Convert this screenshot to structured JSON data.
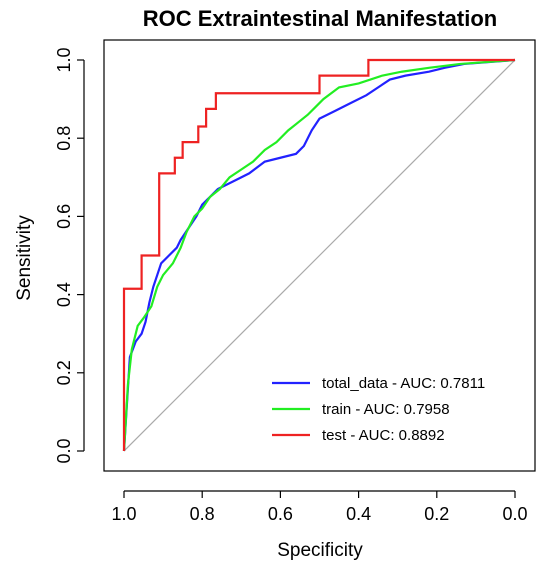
{
  "chart_data": {
    "type": "line",
    "title": "ROC Extraintestinal Manifestation",
    "xlabel": "Specificity",
    "ylabel": "Sensitivity",
    "xlim": [
      1.0,
      0.0
    ],
    "ylim": [
      0.0,
      1.0
    ],
    "x_ticks": [
      "1.0",
      "0.8",
      "0.6",
      "0.4",
      "0.2",
      "0.0"
    ],
    "x_tick_values": [
      1.0,
      0.8,
      0.6,
      0.4,
      0.2,
      0.0
    ],
    "y_ticks": [
      "0.0",
      "0.2",
      "0.4",
      "0.6",
      "0.8",
      "1.0"
    ],
    "y_tick_values": [
      0.0,
      0.2,
      0.4,
      0.6,
      0.8,
      1.0
    ],
    "grid": false,
    "legend_position": "bottom-right",
    "reference_line": {
      "from": [
        1.0,
        0.0
      ],
      "to": [
        0.0,
        1.0
      ],
      "color": "#aaaaaa"
    },
    "series": [
      {
        "name": "total_data - AUC:  0.7811",
        "color": "#2222ff",
        "points": [
          [
            1.0,
            0.0
          ],
          [
            0.995,
            0.08
          ],
          [
            0.99,
            0.16
          ],
          [
            0.985,
            0.24
          ],
          [
            0.97,
            0.28
          ],
          [
            0.955,
            0.3
          ],
          [
            0.945,
            0.33
          ],
          [
            0.935,
            0.38
          ],
          [
            0.925,
            0.42
          ],
          [
            0.915,
            0.45
          ],
          [
            0.905,
            0.48
          ],
          [
            0.885,
            0.5
          ],
          [
            0.865,
            0.52
          ],
          [
            0.855,
            0.54
          ],
          [
            0.835,
            0.57
          ],
          [
            0.815,
            0.6
          ],
          [
            0.8,
            0.63
          ],
          [
            0.78,
            0.65
          ],
          [
            0.76,
            0.67
          ],
          [
            0.72,
            0.69
          ],
          [
            0.68,
            0.71
          ],
          [
            0.64,
            0.74
          ],
          [
            0.6,
            0.75
          ],
          [
            0.56,
            0.76
          ],
          [
            0.54,
            0.78
          ],
          [
            0.52,
            0.82
          ],
          [
            0.5,
            0.85
          ],
          [
            0.46,
            0.87
          ],
          [
            0.42,
            0.89
          ],
          [
            0.38,
            0.91
          ],
          [
            0.35,
            0.93
          ],
          [
            0.32,
            0.95
          ],
          [
            0.28,
            0.96
          ],
          [
            0.22,
            0.97
          ],
          [
            0.18,
            0.98
          ],
          [
            0.13,
            0.99
          ],
          [
            0.0,
            1.0
          ]
        ]
      },
      {
        "name": "train - AUC:  0.7958",
        "color": "#22ee22",
        "points": [
          [
            1.0,
            0.0
          ],
          [
            0.99,
            0.17
          ],
          [
            0.98,
            0.26
          ],
          [
            0.965,
            0.32
          ],
          [
            0.95,
            0.34
          ],
          [
            0.93,
            0.37
          ],
          [
            0.915,
            0.42
          ],
          [
            0.9,
            0.45
          ],
          [
            0.875,
            0.48
          ],
          [
            0.855,
            0.52
          ],
          [
            0.84,
            0.56
          ],
          [
            0.82,
            0.6
          ],
          [
            0.8,
            0.62
          ],
          [
            0.78,
            0.65
          ],
          [
            0.755,
            0.67
          ],
          [
            0.73,
            0.7
          ],
          [
            0.7,
            0.72
          ],
          [
            0.67,
            0.74
          ],
          [
            0.64,
            0.77
          ],
          [
            0.61,
            0.79
          ],
          [
            0.58,
            0.82
          ],
          [
            0.555,
            0.84
          ],
          [
            0.53,
            0.86
          ],
          [
            0.51,
            0.88
          ],
          [
            0.49,
            0.9
          ],
          [
            0.45,
            0.93
          ],
          [
            0.4,
            0.94
          ],
          [
            0.34,
            0.96
          ],
          [
            0.29,
            0.97
          ],
          [
            0.22,
            0.98
          ],
          [
            0.14,
            0.99
          ],
          [
            0.0,
            1.0
          ]
        ]
      },
      {
        "name": "test - AUC:  0.8892",
        "color": "#ee2222",
        "points": [
          [
            1.0,
            0.0
          ],
          [
            1.0,
            0.415
          ],
          [
            0.955,
            0.415
          ],
          [
            0.955,
            0.5
          ],
          [
            0.91,
            0.5
          ],
          [
            0.91,
            0.71
          ],
          [
            0.87,
            0.71
          ],
          [
            0.87,
            0.75
          ],
          [
            0.85,
            0.75
          ],
          [
            0.85,
            0.79
          ],
          [
            0.81,
            0.79
          ],
          [
            0.81,
            0.83
          ],
          [
            0.79,
            0.83
          ],
          [
            0.79,
            0.875
          ],
          [
            0.765,
            0.875
          ],
          [
            0.765,
            0.915
          ],
          [
            0.5,
            0.915
          ],
          [
            0.5,
            0.96
          ],
          [
            0.375,
            0.96
          ],
          [
            0.375,
            1.0
          ],
          [
            0.0,
            1.0
          ]
        ]
      }
    ]
  }
}
